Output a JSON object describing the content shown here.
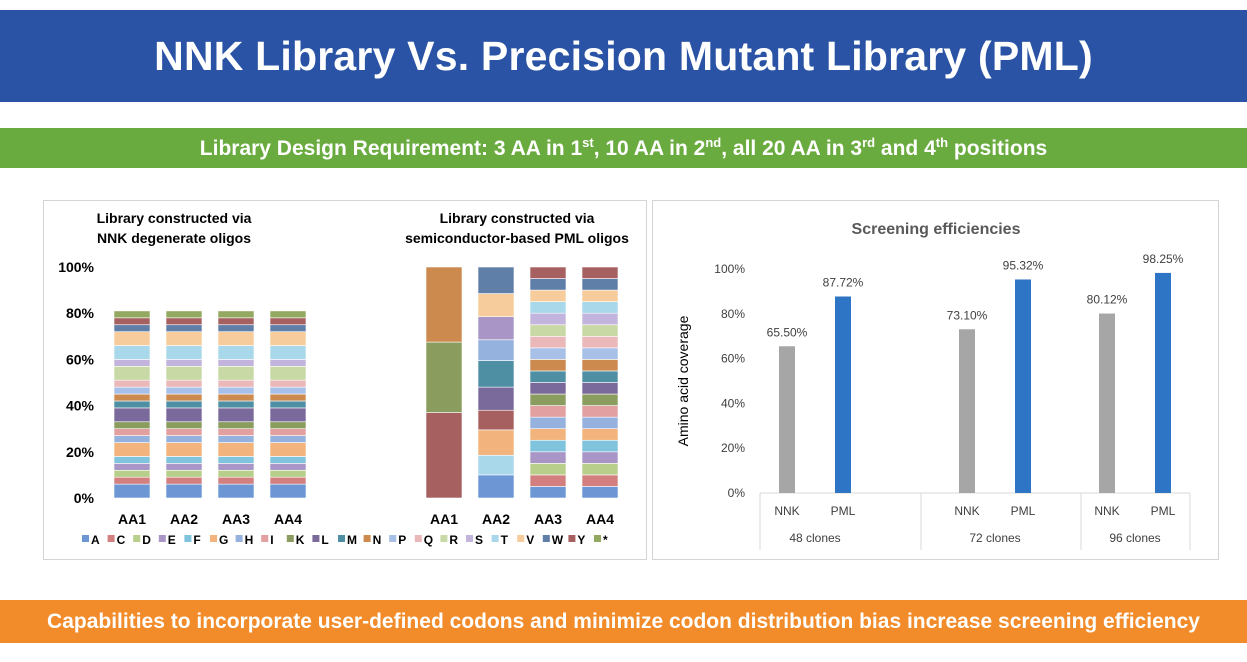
{
  "header": {
    "title": "NNK Library Vs. Precision Mutant Library (PML)"
  },
  "requirement": {
    "p1": "Library Design Requirement: 3 AA in 1",
    "s1": "st",
    "p2": ", 10 AA in 2",
    "s2": "nd",
    "p3": ", all 20 AA in 3",
    "s3": "rd",
    "p4": " and 4",
    "s4": "th",
    "p5": " positions"
  },
  "footer": {
    "text": "Capabilities to incorporate user-defined codons and minimize codon distribution bias increase screening efficiency"
  },
  "colors": {
    "header": "#2a53a5",
    "requirement": "#6aab3f",
    "footer": "#f28b2a",
    "nnk_bar": "#a6a6a6",
    "pml_bar": "#2e75c6"
  },
  "chart_data": [
    {
      "type": "bar",
      "stacked": true,
      "titles": [
        {
          "line1": "Library constructed via",
          "line2": "NNK degenerate oligos"
        },
        {
          "line1": "Library constructed via",
          "line2": "semiconductor-based PML oligos"
        }
      ],
      "categories": [
        "AA1",
        "AA2",
        "AA3",
        "AA4"
      ],
      "yticks": [
        "0%",
        "20%",
        "40%",
        "60%",
        "80%",
        "100%"
      ],
      "ylim": [
        0,
        100
      ],
      "legend_position": "bottom",
      "legend": [
        "A",
        "C",
        "D",
        "E",
        "F",
        "G",
        "H",
        "I",
        "K",
        "L",
        "M",
        "N",
        "P",
        "Q",
        "R",
        "S",
        "T",
        "V",
        "W",
        "Y",
        "*"
      ],
      "legend_colors": [
        "#6c96d4",
        "#d47f7f",
        "#b7cf8a",
        "#a996c6",
        "#7fc3dc",
        "#f2b47c",
        "#95b2df",
        "#e3a0a0",
        "#8a9c5e",
        "#7a6a9c",
        "#4e8fa4",
        "#cc8a4e",
        "#a8c0e8",
        "#eab8b8",
        "#c9d9a6",
        "#c2b4dc",
        "#a8d8ea",
        "#f6cc9c",
        "#5f7fa8",
        "#a66060",
        "#93a860"
      ],
      "nnk": [
        [
          6,
          3,
          3,
          3,
          3,
          6,
          3,
          3,
          3,
          6,
          3,
          3,
          3,
          3,
          6,
          3,
          6,
          6,
          3,
          3,
          3
        ],
        [
          6,
          3,
          3,
          3,
          3,
          6,
          3,
          3,
          3,
          6,
          3,
          3,
          3,
          3,
          6,
          3,
          6,
          6,
          3,
          3,
          3
        ],
        [
          6,
          3,
          3,
          3,
          3,
          6,
          3,
          3,
          3,
          6,
          3,
          3,
          3,
          3,
          6,
          3,
          6,
          6,
          3,
          3,
          3
        ],
        [
          6,
          3,
          3,
          3,
          3,
          6,
          3,
          3,
          3,
          6,
          3,
          3,
          3,
          3,
          6,
          3,
          6,
          6,
          3,
          3,
          3
        ]
      ],
      "pml_groups": [
        [
          {
            "legend": 19,
            "value": 37
          },
          {
            "legend": 8,
            "value": 30.5
          },
          {
            "legend": 11,
            "value": 32.5
          }
        ],
        [
          {
            "legend": 0,
            "value": 10
          },
          {
            "legend": 16,
            "value": 8.5
          },
          {
            "legend": 5,
            "value": 11
          },
          {
            "legend": 19,
            "value": 8.5
          },
          {
            "legend": 9,
            "value": 10
          },
          {
            "legend": 10,
            "value": 11.5
          },
          {
            "legend": 6,
            "value": 9
          },
          {
            "legend": 3,
            "value": 10
          },
          {
            "legend": 17,
            "value": 10
          },
          {
            "legend": 18,
            "value": 11.5
          }
        ],
        [
          {
            "legend": 0,
            "value": 5
          },
          {
            "legend": 1,
            "value": 5
          },
          {
            "legend": 2,
            "value": 5
          },
          {
            "legend": 3,
            "value": 5
          },
          {
            "legend": 4,
            "value": 5
          },
          {
            "legend": 5,
            "value": 5
          },
          {
            "legend": 6,
            "value": 5
          },
          {
            "legend": 7,
            "value": 5
          },
          {
            "legend": 8,
            "value": 5
          },
          {
            "legend": 9,
            "value": 5
          },
          {
            "legend": 10,
            "value": 5
          },
          {
            "legend": 11,
            "value": 5
          },
          {
            "legend": 12,
            "value": 5
          },
          {
            "legend": 13,
            "value": 5
          },
          {
            "legend": 14,
            "value": 5
          },
          {
            "legend": 15,
            "value": 5
          },
          {
            "legend": 16,
            "value": 5
          },
          {
            "legend": 17,
            "value": 5
          },
          {
            "legend": 18,
            "value": 5
          },
          {
            "legend": 19,
            "value": 5
          }
        ],
        [
          {
            "legend": 0,
            "value": 5
          },
          {
            "legend": 1,
            "value": 5
          },
          {
            "legend": 2,
            "value": 5
          },
          {
            "legend": 3,
            "value": 5
          },
          {
            "legend": 4,
            "value": 5
          },
          {
            "legend": 5,
            "value": 5
          },
          {
            "legend": 6,
            "value": 5
          },
          {
            "legend": 7,
            "value": 5
          },
          {
            "legend": 8,
            "value": 5
          },
          {
            "legend": 9,
            "value": 5
          },
          {
            "legend": 10,
            "value": 5
          },
          {
            "legend": 11,
            "value": 5
          },
          {
            "legend": 12,
            "value": 5
          },
          {
            "legend": 13,
            "value": 5
          },
          {
            "legend": 14,
            "value": 5
          },
          {
            "legend": 15,
            "value": 5
          },
          {
            "legend": 16,
            "value": 5
          },
          {
            "legend": 17,
            "value": 5
          },
          {
            "legend": 18,
            "value": 5
          },
          {
            "legend": 19,
            "value": 5
          }
        ]
      ]
    },
    {
      "type": "bar",
      "title": "Screening efficiencies",
      "ylabel": "Amino acid coverage",
      "yticks": [
        "0%",
        "20%",
        "40%",
        "60%",
        "80%",
        "100%"
      ],
      "ylim": [
        0,
        100
      ],
      "grid": false,
      "groups": [
        "48 clones",
        "72 clones",
        "96 clones"
      ],
      "series": [
        {
          "name": "NNK",
          "values": [
            65.5,
            73.1,
            80.12
          ],
          "labels": [
            "65.50%",
            "73.10%",
            "80.12%"
          ]
        },
        {
          "name": "PML",
          "values": [
            87.72,
            95.32,
            98.25
          ],
          "labels": [
            "87.72%",
            "95.32%",
            "98.25%"
          ]
        }
      ]
    }
  ]
}
